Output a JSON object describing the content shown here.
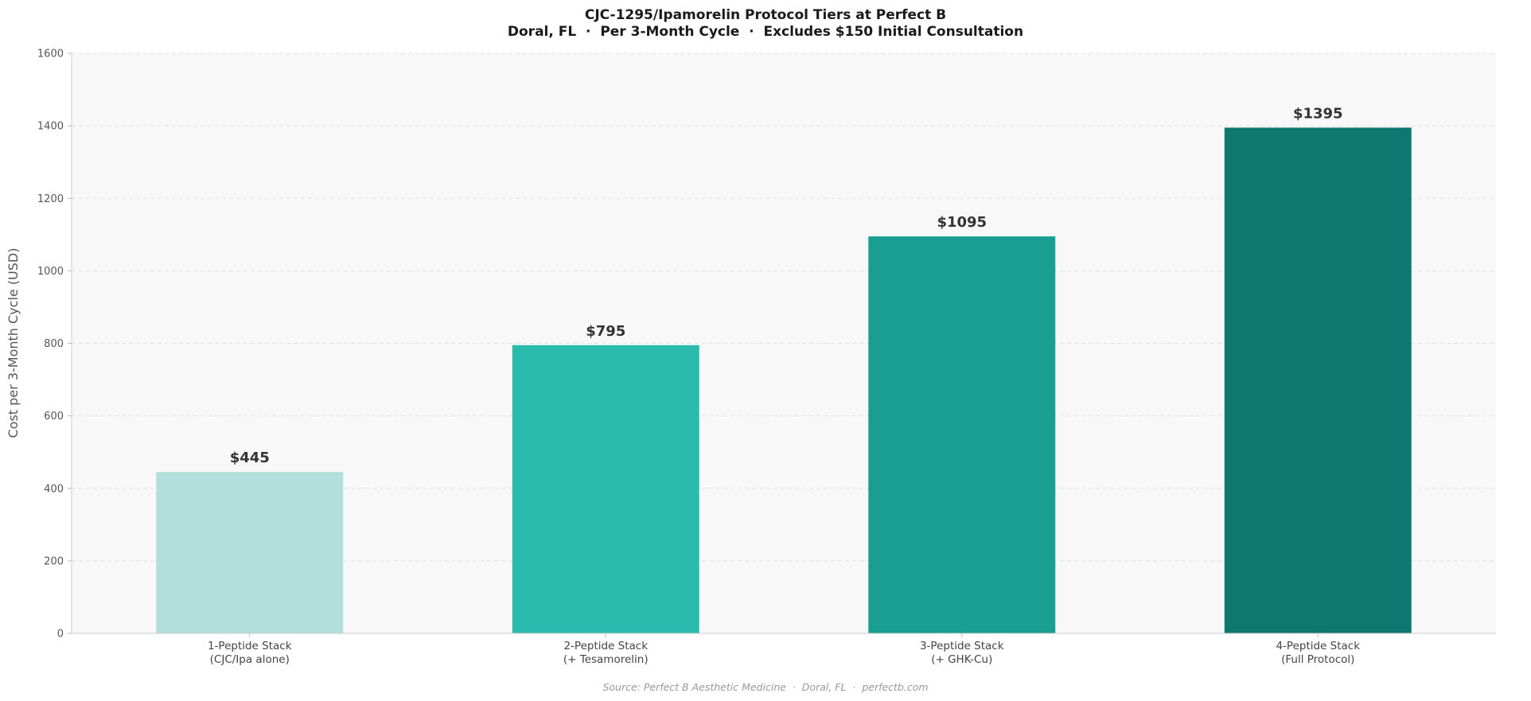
{
  "chart_data": {
    "type": "bar",
    "title": "CJC-1295/Ipamorelin Protocol Tiers at Perfect B",
    "subtitle": "Doral, FL  ·  Per 3-Month Cycle  ·  Excludes $150 Initial Consultation",
    "ylabel": "Cost per 3-Month Cycle (USD)",
    "xlabel": "",
    "ylim": [
      0,
      1600
    ],
    "yticks": [
      0,
      200,
      400,
      600,
      800,
      1000,
      1200,
      1400,
      1600
    ],
    "categories": [
      [
        "1-Peptide Stack",
        "(CJC/Ipa alone)"
      ],
      [
        "2-Peptide Stack",
        "(+ Tesamorelin)"
      ],
      [
        "3-Peptide Stack",
        "(+ GHK-Cu)"
      ],
      [
        "4-Peptide Stack",
        "(Full Protocol)"
      ]
    ],
    "values": [
      445,
      795,
      1095,
      1395
    ],
    "value_labels": [
      "$445",
      "$795",
      "$1095",
      "$1395"
    ],
    "colors": [
      "#b2dfdb",
      "#2bbbad",
      "#1a9e91",
      "#0e7770"
    ],
    "grid": true,
    "source": "Source: Perfect B Aesthetic Medicine  ·  Doral, FL  ·  perfectb.com"
  }
}
